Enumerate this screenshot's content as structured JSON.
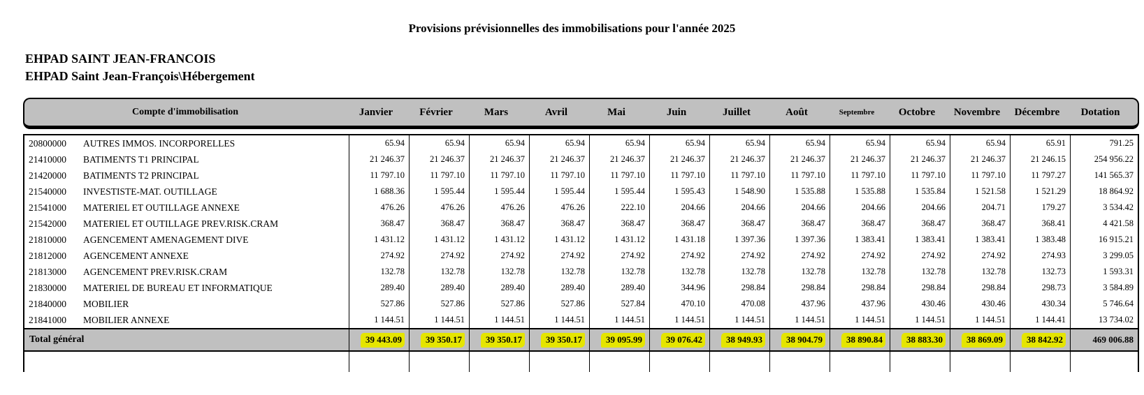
{
  "page": {
    "title": "Provisions prévisionnelles des immobilisations pour l'année 2025",
    "entity_line1": "EHPAD SAINT JEAN-FRANCOIS",
    "entity_line2": "EHPAD Saint Jean-François\\Hébergement"
  },
  "table": {
    "label_header": "Compte d'immobilisation",
    "month_headers": [
      "Janvier",
      "Février",
      "Mars",
      "Avril",
      "Mai",
      "Juin",
      "Juillet",
      "Août",
      "Septembre",
      "Octobre",
      "Novembre",
      "Décembre",
      "Dotation"
    ],
    "rows": [
      {
        "code": "20800000",
        "label": "AUTRES IMMOS. INCORPORELLES",
        "values": [
          "65.94",
          "65.94",
          "65.94",
          "65.94",
          "65.94",
          "65.94",
          "65.94",
          "65.94",
          "65.94",
          "65.94",
          "65.94",
          "65.91",
          "791.25"
        ]
      },
      {
        "code": "21410000",
        "label": "BATIMENTS T1 PRINCIPAL",
        "values": [
          "21 246.37",
          "21 246.37",
          "21 246.37",
          "21 246.37",
          "21 246.37",
          "21 246.37",
          "21 246.37",
          "21 246.37",
          "21 246.37",
          "21 246.37",
          "21 246.37",
          "21 246.15",
          "254 956.22"
        ]
      },
      {
        "code": "21420000",
        "label": "BATIMENTS T2 PRINCIPAL",
        "values": [
          "11 797.10",
          "11 797.10",
          "11 797.10",
          "11 797.10",
          "11 797.10",
          "11 797.10",
          "11 797.10",
          "11 797.10",
          "11 797.10",
          "11 797.10",
          "11 797.10",
          "11 797.27",
          "141 565.37"
        ]
      },
      {
        "code": "21540000",
        "label": "INVESTISTE-MAT. OUTILLAGE",
        "values": [
          "1 688.36",
          "1 595.44",
          "1 595.44",
          "1 595.44",
          "1 595.44",
          "1 595.43",
          "1 548.90",
          "1 535.88",
          "1 535.88",
          "1 535.84",
          "1 521.58",
          "1 521.29",
          "18 864.92"
        ]
      },
      {
        "code": "21541000",
        "label": "MATERIEL ET OUTILLAGE ANNEXE",
        "values": [
          "476.26",
          "476.26",
          "476.26",
          "476.26",
          "222.10",
          "204.66",
          "204.66",
          "204.66",
          "204.66",
          "204.66",
          "204.71",
          "179.27",
          "3 534.42"
        ]
      },
      {
        "code": "21542000",
        "label": "MATERIEL ET OUTILLAGE PREV.RISK.CRAM",
        "values": [
          "368.47",
          "368.47",
          "368.47",
          "368.47",
          "368.47",
          "368.47",
          "368.47",
          "368.47",
          "368.47",
          "368.47",
          "368.47",
          "368.41",
          "4 421.58"
        ]
      },
      {
        "code": "21810000",
        "label": "AGENCEMENT AMENAGEMENT DIVE",
        "values": [
          "1 431.12",
          "1 431.12",
          "1 431.12",
          "1 431.12",
          "1 431.12",
          "1 431.18",
          "1 397.36",
          "1 397.36",
          "1 383.41",
          "1 383.41",
          "1 383.41",
          "1 383.48",
          "16 915.21"
        ]
      },
      {
        "code": "21812000",
        "label": "AGENCEMENT ANNEXE",
        "values": [
          "274.92",
          "274.92",
          "274.92",
          "274.92",
          "274.92",
          "274.92",
          "274.92",
          "274.92",
          "274.92",
          "274.92",
          "274.92",
          "274.93",
          "3 299.05"
        ]
      },
      {
        "code": "21813000",
        "label": "AGENCEMENT PREV.RISK.CRAM",
        "values": [
          "132.78",
          "132.78",
          "132.78",
          "132.78",
          "132.78",
          "132.78",
          "132.78",
          "132.78",
          "132.78",
          "132.78",
          "132.78",
          "132.73",
          "1 593.31"
        ]
      },
      {
        "code": "21830000",
        "label": "MATERIEL DE BUREAU ET INFORMATIQUE",
        "values": [
          "289.40",
          "289.40",
          "289.40",
          "289.40",
          "289.40",
          "344.96",
          "298.84",
          "298.84",
          "298.84",
          "298.84",
          "298.84",
          "298.73",
          "3 584.89"
        ]
      },
      {
        "code": "21840000",
        "label": "MOBILIER",
        "values": [
          "527.86",
          "527.86",
          "527.86",
          "527.86",
          "527.84",
          "470.10",
          "470.08",
          "437.96",
          "437.96",
          "430.46",
          "430.46",
          "430.34",
          "5 746.64"
        ]
      },
      {
        "code": "21841000",
        "label": "MOBILIER ANNEXE",
        "values": [
          "1 144.51",
          "1 144.51",
          "1 144.51",
          "1 144.51",
          "1 144.51",
          "1 144.51",
          "1 144.51",
          "1 144.51",
          "1 144.51",
          "1 144.51",
          "1 144.51",
          "1 144.41",
          "13 734.02"
        ]
      }
    ],
    "total": {
      "label": "Total général",
      "values": [
        "39 443.09",
        "39 350.17",
        "39 350.17",
        "39 350.17",
        "39 095.99",
        "39 076.42",
        "38 949.93",
        "38 904.79",
        "38 890.84",
        "38 883.30",
        "38 869.09",
        "38 842.92",
        "469 006.88"
      ]
    }
  },
  "colors": {
    "header_bg": "#C0C0C0",
    "total_row_bg": "#C0C0C0",
    "highlight_yellow": "#E5E500",
    "border": "#000000"
  }
}
